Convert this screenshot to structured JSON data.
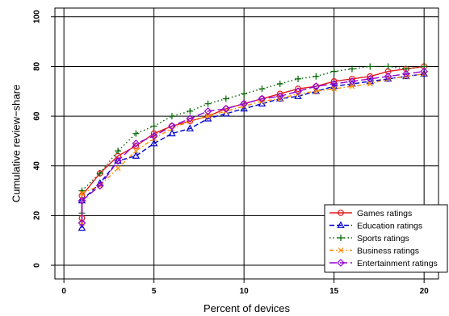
{
  "chart_data": {
    "type": "line",
    "xlabel": "Percent of devices",
    "ylabel": "Cumulative review−share",
    "xlim": [
      -0.5,
      20.8
    ],
    "ylim": [
      -5.5,
      103.5
    ],
    "xticks": [
      0,
      5,
      10,
      15,
      20
    ],
    "yticks": [
      0,
      20,
      40,
      60,
      80,
      100
    ],
    "grid": true,
    "legend_position": "bottom-right",
    "x": [
      1,
      2,
      3,
      4,
      5,
      6,
      7,
      8,
      9,
      10,
      11,
      12,
      13,
      14,
      15,
      16,
      17,
      18,
      19,
      20
    ],
    "series": [
      {
        "name": "Games ratings",
        "color": "#e31a1c",
        "line": "solid",
        "marker": "circle",
        "start_values": [
          28,
          19
        ],
        "values": [
          28,
          37,
          44,
          48,
          53,
          56,
          58,
          60,
          63,
          65,
          67,
          69,
          71,
          72,
          74,
          75,
          76,
          78,
          79,
          80
        ]
      },
      {
        "name": "Education ratings",
        "color": "#0000cd",
        "line": "dashed",
        "marker": "triangle",
        "start_values": [
          26,
          15
        ],
        "values": [
          26,
          33,
          42,
          44,
          49,
          53,
          55,
          59,
          61,
          63,
          65,
          67,
          68,
          70,
          72,
          73,
          74,
          75,
          76,
          77
        ]
      },
      {
        "name": "Sports ratings",
        "color": "#006400",
        "line": "dotted",
        "marker": "plus",
        "start_values": [
          30,
          21
        ],
        "values": [
          30,
          37,
          46,
          53,
          56,
          60,
          62,
          65,
          67,
          69,
          71,
          73,
          75,
          76,
          78,
          79,
          80,
          80,
          79,
          80
        ]
      },
      {
        "name": "Business ratings",
        "color": "#ff8c00",
        "line": "dashdot",
        "marker": "cross",
        "start_values": [
          29,
          17
        ],
        "values": [
          29,
          32,
          39,
          46,
          51,
          55,
          58,
          60,
          62,
          64,
          66,
          67,
          69,
          70,
          71,
          72,
          73,
          75,
          76,
          77
        ]
      },
      {
        "name": "Entertainment ratings",
        "color": "#9400d3",
        "line": "longdash",
        "marker": "diamond",
        "start_values": [
          26,
          17
        ],
        "values": [
          26,
          32,
          42,
          49,
          52,
          56,
          59,
          62,
          63,
          65,
          67,
          68,
          70,
          72,
          73,
          74,
          75,
          76,
          77,
          78
        ]
      }
    ]
  }
}
